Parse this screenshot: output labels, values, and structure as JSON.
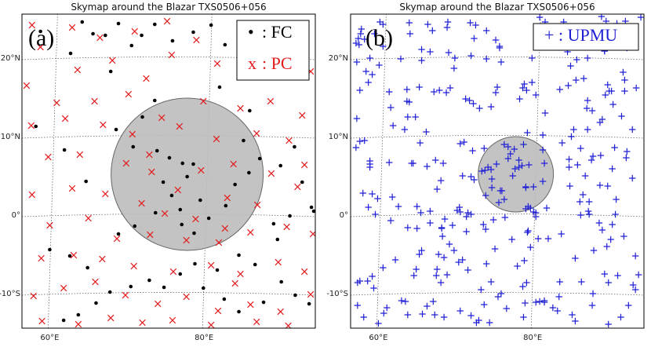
{
  "chart_data": [
    {
      "type": "scatter",
      "panel_label": "(a)",
      "title": "Skymap around the Blazar TXS0506+056",
      "xlim": [
        56,
        94
      ],
      "ylim": [
        -14.5,
        25.5
      ],
      "xticks": [
        {
          "v": 60,
          "label": "60°E"
        },
        {
          "v": 80,
          "label": "80°E"
        }
      ],
      "yticks": [
        {
          "v": 20,
          "label": "20°N"
        },
        {
          "v": 10,
          "label": "10°N"
        },
        {
          "v": 0,
          "label": "0°"
        },
        {
          "v": -10,
          "label": "-10°S"
        }
      ],
      "circle": {
        "ra": 77.4,
        "dec": 5.1,
        "radius": 9.7,
        "color": "#bdbdbd"
      },
      "legend": [
        {
          "symbol": "•",
          "text": ": FC",
          "color": "#000000"
        },
        {
          "symbol": "x",
          "text": ": PC",
          "color": "#e41a1c"
        }
      ],
      "series": [
        {
          "name": "FC",
          "marker": "dot",
          "color": "#000000",
          "points": [
            [
              63.8,
              24.5
            ],
            [
              65.2,
              23
            ],
            [
              66.8,
              22.8
            ],
            [
              68.5,
              24.3
            ],
            [
              70.2,
              21.5
            ],
            [
              71.5,
              22.8
            ],
            [
              73.2,
              24.2
            ],
            [
              75.5,
              22.1
            ],
            [
              78.2,
              23.2
            ],
            [
              80.5,
              24.1
            ],
            [
              82.3,
              21.6
            ],
            [
              84.5,
              23
            ],
            [
              86.2,
              22.4
            ],
            [
              62.3,
              20.5
            ],
            [
              67.5,
              18.2
            ],
            [
              73.2,
              14.5
            ],
            [
              71.6,
              12.4
            ],
            [
              68.2,
              10.8
            ],
            [
              70.4,
              8.6
            ],
            [
              73.5,
              8.1
            ],
            [
              75.1,
              7.2
            ],
            [
              76.8,
              6.5
            ],
            [
              77.4,
              4.8
            ],
            [
              78.2,
              6.4
            ],
            [
              74.3,
              4.1
            ],
            [
              75.4,
              2.4
            ],
            [
              73.3,
              0.2
            ],
            [
              76.5,
              0.6
            ],
            [
              79.1,
              1.8
            ],
            [
              76.7,
              -1.3
            ],
            [
              78.3,
              -2.4
            ],
            [
              80.2,
              -0.5
            ],
            [
              82.4,
              1.1
            ],
            [
              83.6,
              3.8
            ],
            [
              85.4,
              5.3
            ],
            [
              86.8,
              7.1
            ],
            [
              84.7,
              9.4
            ],
            [
              91.3,
              8.6
            ],
            [
              89.5,
              6.2
            ],
            [
              92.3,
              4.1
            ],
            [
              93.5,
              0.9
            ],
            [
              93.8,
              0.4
            ],
            [
              89.1,
              -3.2
            ],
            [
              86.2,
              -6.4
            ],
            [
              84.1,
              -5.2
            ],
            [
              81.3,
              -7.1
            ],
            [
              78.4,
              -6.3
            ],
            [
              76.5,
              -7.6
            ],
            [
              74.4,
              -9.3
            ],
            [
              72.5,
              -8.4
            ],
            [
              70.1,
              -9.2
            ],
            [
              67.4,
              -9.9
            ],
            [
              65.6,
              -11.3
            ],
            [
              63.3,
              -12.8
            ],
            [
              61.4,
              -13.5
            ],
            [
              64.5,
              -6.8
            ],
            [
              62.2,
              -5.3
            ],
            [
              59.6,
              -4.5
            ],
            [
              79.5,
              -9.4
            ],
            [
              82.2,
              -10.8
            ],
            [
              84.1,
              -12.4
            ],
            [
              87.3,
              -11.2
            ],
            [
              89.6,
              -8.6
            ],
            [
              91.4,
              -10.3
            ],
            [
              93.2,
              -11.4
            ],
            [
              61.5,
              8.2
            ],
            [
              64.3,
              4.2
            ],
            [
              68.5,
              -2.5
            ],
            [
              70.6,
              -1.5
            ],
            [
              85.5,
              13.2
            ],
            [
              81.6,
              16.2
            ],
            [
              88.6,
              -1.2
            ],
            [
              90.7,
              -0.2
            ],
            [
              57.8,
              11.2
            ],
            [
              58.4,
              23.3
            ]
          ]
        },
        {
          "name": "PC",
          "marker": "x",
          "color": "#e41a1c",
          "points": [
            [
              57.3,
              24.1
            ],
            [
              62.5,
              23.8
            ],
            [
              66.1,
              22.5
            ],
            [
              70.6,
              23.3
            ],
            [
              74.8,
              24.6
            ],
            [
              78.6,
              22.2
            ],
            [
              84.6,
              24.1
            ],
            [
              89.4,
              22.4
            ],
            [
              91.6,
              23.6
            ],
            [
              58.4,
              21.3
            ],
            [
              63.2,
              18.4
            ],
            [
              67.7,
              19.6
            ],
            [
              72.1,
              17.3
            ],
            [
              75.4,
              20.3
            ],
            [
              81.3,
              19.2
            ],
            [
              85.7,
              18.1
            ],
            [
              90.2,
              20.6
            ],
            [
              93.4,
              18.2
            ],
            [
              56.6,
              16.4
            ],
            [
              60.5,
              14.2
            ],
            [
              65.4,
              14.4
            ],
            [
              69.8,
              15.3
            ],
            [
              74.1,
              12.3
            ],
            [
              79.5,
              14.4
            ],
            [
              84.3,
              13.5
            ],
            [
              88.2,
              14.4
            ],
            [
              92.3,
              12.6
            ],
            [
              57.2,
              11.3
            ],
            [
              61.6,
              12.2
            ],
            [
              66.5,
              11.4
            ],
            [
              70.3,
              10.2
            ],
            [
              76.4,
              11.2
            ],
            [
              81.2,
              9.6
            ],
            [
              86.4,
              10.3
            ],
            [
              90.6,
              9.4
            ],
            [
              59.4,
              7.3
            ],
            [
              63.5,
              7.6
            ],
            [
              69.5,
              6.5
            ],
            [
              72.8,
              5.4
            ],
            [
              76.2,
              3.1
            ],
            [
              79.2,
              5.6
            ],
            [
              83.4,
              6.4
            ],
            [
              88.3,
              5.2
            ],
            [
              92.6,
              6.3
            ],
            [
              57.3,
              2.5
            ],
            [
              62.5,
              3.3
            ],
            [
              66.8,
              2.6
            ],
            [
              71.5,
              1.4
            ],
            [
              74.5,
              0.1
            ],
            [
              78.5,
              -0.6
            ],
            [
              82.6,
              2.1
            ],
            [
              86.5,
              1.2
            ],
            [
              91.7,
              3.5
            ],
            [
              59.6,
              -1.4
            ],
            [
              64.6,
              -0.5
            ],
            [
              68.3,
              -3.1
            ],
            [
              72.6,
              -2.6
            ],
            [
              77.3,
              -3.3
            ],
            [
              81.5,
              -3.6
            ],
            [
              85.6,
              -2.3
            ],
            [
              90.3,
              -1.6
            ],
            [
              93.7,
              -2.5
            ],
            [
              58.5,
              -5.6
            ],
            [
              62.7,
              -5.2
            ],
            [
              66.4,
              -5.7
            ],
            [
              70.5,
              -6.6
            ],
            [
              75.6,
              -7.3
            ],
            [
              80.5,
              -6.5
            ],
            [
              84.3,
              -7.6
            ],
            [
              89.2,
              -6.1
            ],
            [
              92.6,
              -7.3
            ],
            [
              57.5,
              -10.4
            ],
            [
              61.4,
              -9.4
            ],
            [
              65.5,
              -8.6
            ],
            [
              69.4,
              -10.3
            ],
            [
              73.6,
              -11.4
            ],
            [
              77.3,
              -10.5
            ],
            [
              81.4,
              -12.3
            ],
            [
              85.6,
              -11.5
            ],
            [
              89.5,
              -12.4
            ],
            [
              93.4,
              -10.2
            ],
            [
              58.6,
              -13.6
            ],
            [
              63.3,
              -14.0
            ],
            [
              67.5,
              -13.2
            ],
            [
              71.6,
              -13.8
            ],
            [
              75.5,
              -13.5
            ],
            [
              80.5,
              -14.1
            ],
            [
              86.4,
              -13.7
            ],
            [
              90.5,
              -14.2
            ],
            [
              83.6,
              -8.8
            ],
            [
              72.5,
              7.6
            ],
            [
              82.3,
              -1.8
            ]
          ]
        }
      ]
    },
    {
      "type": "scatter",
      "panel_label": "(b)",
      "title": "Skymap around the Blazar TXS0506+056",
      "xlim": [
        56,
        94
      ],
      "ylim": [
        -14.5,
        25.5
      ],
      "xticks": [
        {
          "v": 60,
          "label": "60°E"
        },
        {
          "v": 80,
          "label": "80°E"
        }
      ],
      "yticks": [
        {
          "v": 20,
          "label": "20°N"
        },
        {
          "v": 10,
          "label": "10°N"
        },
        {
          "v": 0,
          "label": "0°"
        },
        {
          "v": -10,
          "label": "-10°S"
        }
      ],
      "circle": {
        "ra": 77.4,
        "dec": 5.1,
        "radius": 4.8,
        "color": "#bdbdbd"
      },
      "legend": [
        {
          "symbol": "+",
          "text": ": UPMU",
          "color": "#1f1fd6"
        }
      ],
      "series": [
        {
          "name": "UPMU",
          "marker": "plus",
          "color": "#1f1fd6",
          "points": []
        }
      ]
    }
  ]
}
